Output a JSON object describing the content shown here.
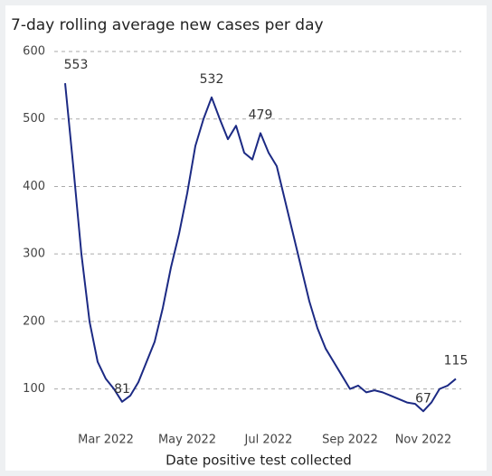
{
  "chart_data": {
    "type": "line",
    "title": "7-day rolling average new cases per day",
    "x_label": "Date positive test collected",
    "categories": [
      null,
      null,
      null,
      null,
      null,
      "Mar 2022",
      null,
      null,
      null,
      null,
      null,
      null,
      null,
      null,
      null,
      "May 2022",
      null,
      null,
      null,
      null,
      null,
      null,
      null,
      null,
      null,
      "Jul 2022",
      null,
      null,
      null,
      null,
      null,
      null,
      null,
      null,
      null,
      "Sep 2022",
      null,
      null,
      null,
      null,
      null,
      null,
      null,
      null,
      "Nov 2022",
      null,
      null,
      null,
      null
    ],
    "series": [
      {
        "color": "#1c2a84",
        "values": [
          553,
          430,
          300,
          200,
          140,
          115,
          100,
          81,
          90,
          110,
          140,
          170,
          220,
          280,
          330,
          390,
          460,
          500,
          532,
          500,
          470,
          490,
          450,
          440,
          479,
          450,
          430,
          380,
          330,
          280,
          230,
          190,
          160,
          140,
          120,
          100,
          105,
          95,
          98,
          95,
          90,
          85,
          80,
          78,
          67,
          80,
          100,
          105,
          115
        ],
        "value_labels": [
          "553",
          null,
          null,
          null,
          null,
          null,
          null,
          "81",
          null,
          null,
          null,
          null,
          null,
          null,
          null,
          null,
          null,
          null,
          "532",
          null,
          null,
          null,
          null,
          null,
          "479",
          null,
          null,
          null,
          null,
          null,
          null,
          null,
          null,
          null,
          null,
          null,
          null,
          null,
          null,
          null,
          null,
          null,
          null,
          null,
          "67",
          null,
          null,
          null,
          "115"
        ]
      }
    ],
    "ylim": [
      50,
      600
    ],
    "yticks": [
      100,
      200,
      300,
      400,
      500,
      600
    ],
    "grid": true
  }
}
